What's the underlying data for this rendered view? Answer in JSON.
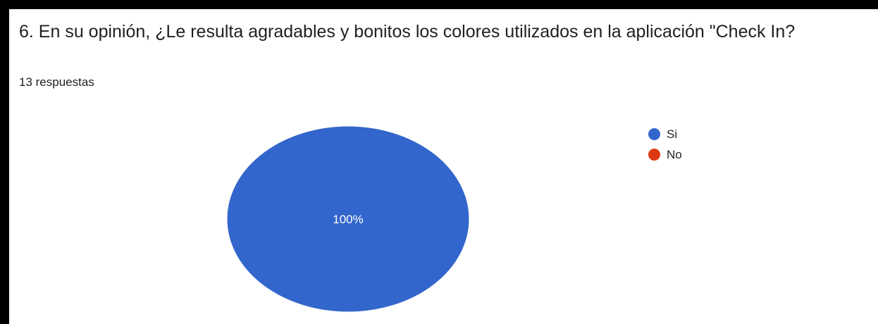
{
  "question": {
    "title": "6. En su opinión, ¿Le resulta agradables y bonitos los colores utilizados en la aplicación \"Check In?",
    "response_count": "13 respuestas"
  },
  "chart_data": {
    "type": "pie",
    "categories": [
      "Si",
      "No"
    ],
    "values": [
      100,
      0
    ],
    "data_labels": [
      "100%"
    ],
    "colors": [
      "#3366cc",
      "#dc3912"
    ],
    "legend_position": "right"
  }
}
